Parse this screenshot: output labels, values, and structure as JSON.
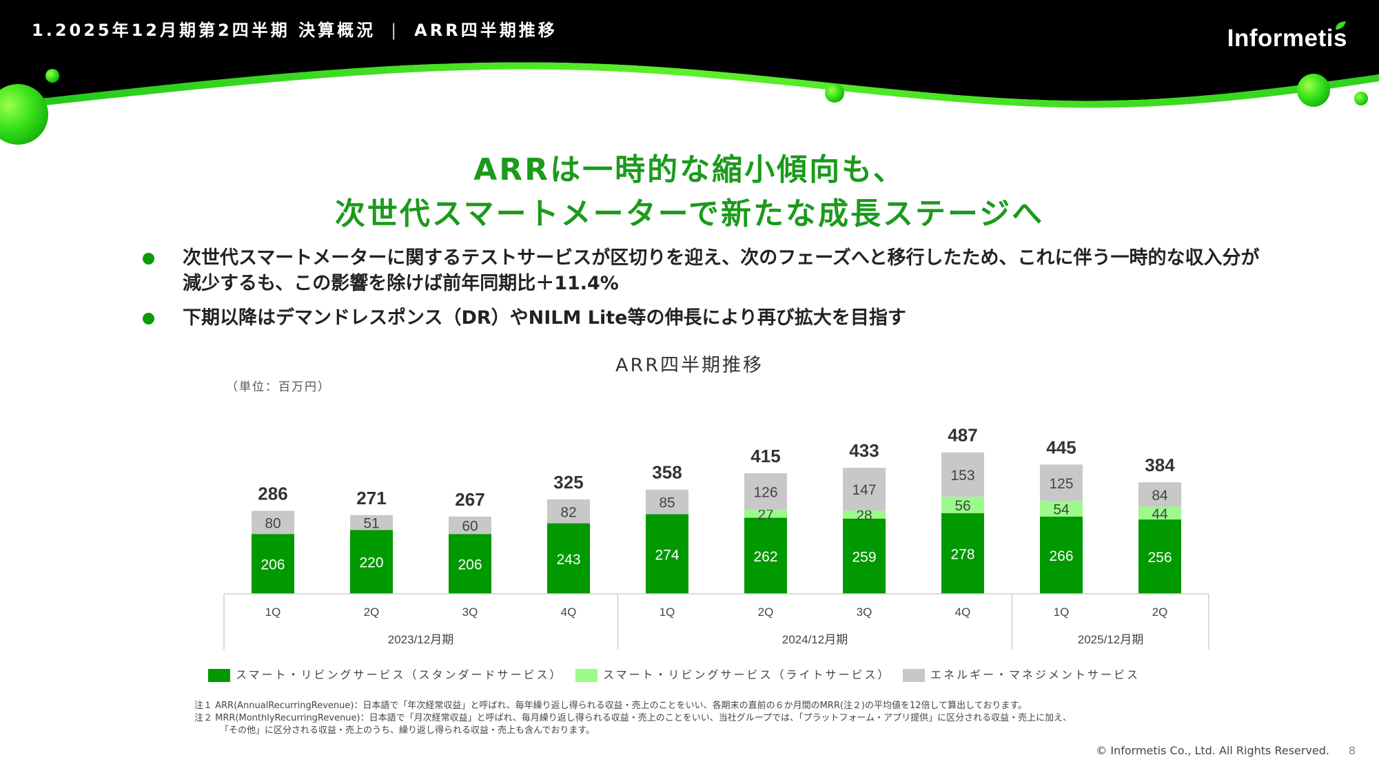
{
  "header": {
    "section_title": "1.2025年12月期第2四半期 決算概況",
    "separator": "|",
    "page_title": "ARR四半期推移",
    "logo_text": "Informetis"
  },
  "headline": {
    "line1": "ARRは一時的な縮小傾向も、",
    "line2": "次世代スマートメーターで新たな成長ステージへ"
  },
  "bullets": [
    {
      "text": "次世代スマートメーターに関するテストサービスが区切りを迎え、次のフェーズへと移行したため、これに伴う一時的な収入分が減少するも、この影響を除けば前年同期比＋11.4%"
    },
    {
      "text": "下期以降はデマンドレスポンス（DR）やNILM Lite等の伸長により再び拡大を目指す"
    }
  ],
  "chart_data": {
    "type": "bar",
    "stacked": true,
    "title": "ARR四半期推移",
    "unit_label": "（単位：百万円）",
    "categories": [
      "1Q",
      "2Q",
      "3Q",
      "4Q",
      "1Q",
      "2Q",
      "3Q",
      "4Q",
      "1Q",
      "2Q"
    ],
    "groups": [
      {
        "label": "2023/12月期",
        "count": 4
      },
      {
        "label": "2024/12月期",
        "count": 4
      },
      {
        "label": "2025/12月期",
        "count": 2
      }
    ],
    "totals": [
      286,
      271,
      267,
      325,
      358,
      415,
      433,
      487,
      445,
      384
    ],
    "series": [
      {
        "name": "スマート・リビングサービス（スタンダードサービス）",
        "color": "#009900",
        "label_color": "#ffffff",
        "values": [
          206,
          220,
          206,
          243,
          274,
          262,
          259,
          278,
          266,
          256
        ]
      },
      {
        "name": "スマート・リビングサービス（ライトサービス）",
        "color": "#9cfa8a",
        "label_color": "#444444",
        "values": [
          null,
          null,
          null,
          null,
          null,
          27,
          28,
          56,
          54,
          44
        ]
      },
      {
        "name": "エネルギー・マネジメントサービス",
        "color": "#c8c8c8",
        "label_color": "#444444",
        "values": [
          80,
          51,
          60,
          82,
          85,
          126,
          147,
          153,
          125,
          84
        ]
      }
    ],
    "ylim": [
      0,
      500
    ]
  },
  "notes": [
    "注１ ARR(AnnualRecurringRevenue)：日本語で「年次経常収益」と呼ばれ、毎年繰り返し得られる収益・売上のことをいい、各期末の直前の６か月間のMRR(注２)の平均値を12倍して算出しております。",
    "注２ MRR(MonthlyRecurringRevenue)：日本語で「月次経常収益」と呼ばれ、毎月繰り返し得られる収益・売上のことをいい、当社グループでは、「プラットフォーム・アプリ提供」に区分される収益・売上に加え、",
    "「その他」に区分される収益・売上のうち、繰り返し得られる収益・売上も含んでおります。"
  ],
  "footer": {
    "copyright": "© Informetis Co., Ltd. All Rights Reserved.",
    "page_number": "8"
  }
}
